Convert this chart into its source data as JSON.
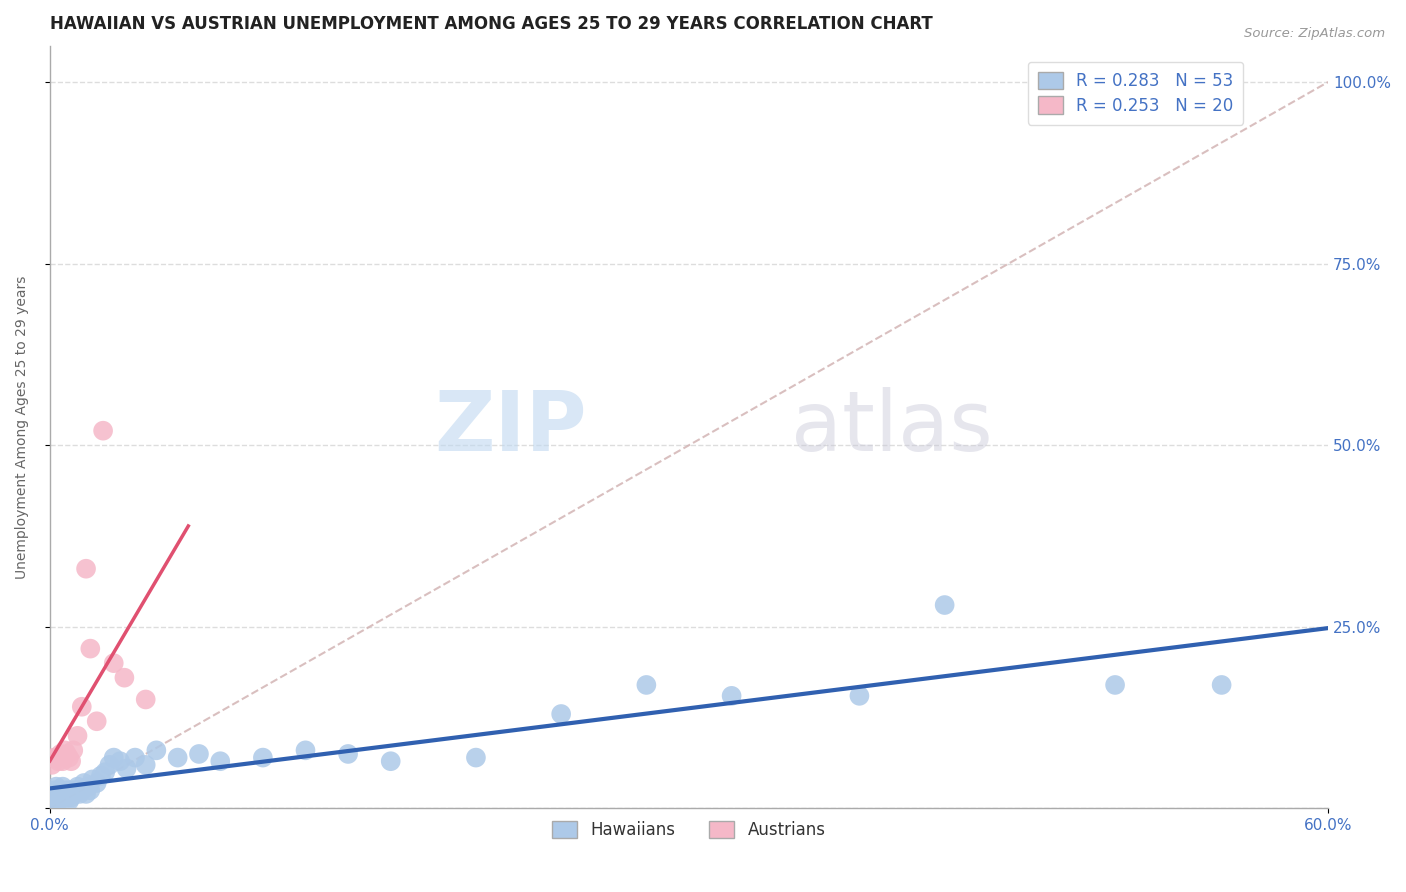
{
  "title": "HAWAIIAN VS AUSTRIAN UNEMPLOYMENT AMONG AGES 25 TO 29 YEARS CORRELATION CHART",
  "source_text": "Source: ZipAtlas.com",
  "ylabel": "Unemployment Among Ages 25 to 29 years",
  "xlim": [
    0.0,
    0.6
  ],
  "ylim": [
    0.0,
    1.05
  ],
  "x_tick_labels": [
    "0.0%",
    "60.0%"
  ],
  "y_ticks": [
    0.0,
    0.25,
    0.5,
    0.75,
    1.0
  ],
  "y_tick_labels": [
    "",
    "25.0%",
    "50.0%",
    "75.0%",
    "100.0%"
  ],
  "hawaiian_color": "#adc9e8",
  "austrian_color": "#f5b8c8",
  "hawaiian_line_color": "#3060b0",
  "austrian_line_color": "#e05070",
  "diag_line_color": "#d0b0b0",
  "R_hawaiian": 0.283,
  "N_hawaiian": 53,
  "R_austrian": 0.253,
  "N_austrian": 20,
  "watermark_zip": "ZIP",
  "watermark_atlas": "atlas",
  "background_color": "#ffffff",
  "grid_color": "#dddddd",
  "hawaiian_x": [
    0.001,
    0.002,
    0.002,
    0.003,
    0.003,
    0.004,
    0.004,
    0.005,
    0.005,
    0.006,
    0.006,
    0.007,
    0.008,
    0.008,
    0.009,
    0.009,
    0.01,
    0.01,
    0.011,
    0.012,
    0.013,
    0.014,
    0.015,
    0.016,
    0.017,
    0.018,
    0.019,
    0.02,
    0.022,
    0.024,
    0.026,
    0.028,
    0.03,
    0.033,
    0.036,
    0.04,
    0.045,
    0.05,
    0.06,
    0.07,
    0.08,
    0.1,
    0.12,
    0.14,
    0.16,
    0.2,
    0.24,
    0.28,
    0.32,
    0.38,
    0.42,
    0.5,
    0.55
  ],
  "hawaiian_y": [
    0.02,
    0.01,
    0.025,
    0.015,
    0.03,
    0.01,
    0.02,
    0.025,
    0.015,
    0.02,
    0.03,
    0.02,
    0.015,
    0.025,
    0.01,
    0.02,
    0.025,
    0.015,
    0.02,
    0.025,
    0.03,
    0.02,
    0.025,
    0.035,
    0.02,
    0.03,
    0.025,
    0.04,
    0.035,
    0.045,
    0.05,
    0.06,
    0.07,
    0.065,
    0.055,
    0.07,
    0.06,
    0.08,
    0.07,
    0.075,
    0.065,
    0.07,
    0.08,
    0.075,
    0.065,
    0.07,
    0.13,
    0.17,
    0.155,
    0.155,
    0.28,
    0.17,
    0.17
  ],
  "austrian_x": [
    0.001,
    0.002,
    0.003,
    0.004,
    0.005,
    0.006,
    0.007,
    0.008,
    0.009,
    0.01,
    0.011,
    0.013,
    0.015,
    0.017,
    0.019,
    0.022,
    0.025,
    0.03,
    0.035,
    0.045
  ],
  "austrian_y": [
    0.06,
    0.07,
    0.07,
    0.065,
    0.075,
    0.065,
    0.08,
    0.075,
    0.07,
    0.065,
    0.08,
    0.1,
    0.14,
    0.33,
    0.22,
    0.12,
    0.52,
    0.2,
    0.18,
    0.15
  ],
  "title_fontsize": 12,
  "label_fontsize": 10,
  "tick_fontsize": 11,
  "legend_fontsize": 12
}
